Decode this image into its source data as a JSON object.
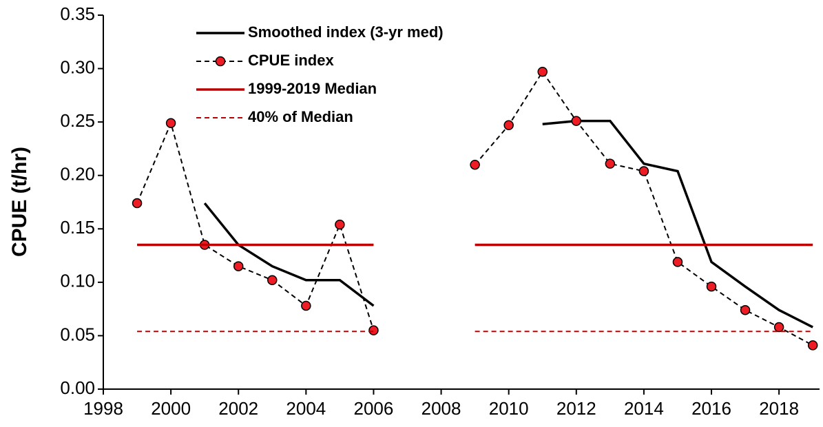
{
  "chart_data": {
    "type": "line",
    "y_label": "CPUE  (t/hr)",
    "x": [
      1999,
      2000,
      2001,
      2002,
      2003,
      2004,
      2005,
      2006,
      2007,
      2008,
      2009,
      2010,
      2011,
      2012,
      2013,
      2014,
      2015,
      2016,
      2017,
      2018,
      2019
    ],
    "series": [
      {
        "name": "Smoothed index (3-yr med)",
        "color": "#000000",
        "dash": false,
        "marker": false,
        "values": [
          null,
          null,
          0.174,
          0.135,
          0.115,
          0.102,
          0.102,
          0.078,
          null,
          null,
          null,
          null,
          0.248,
          0.251,
          0.251,
          0.211,
          0.204,
          0.119,
          0.096,
          0.074,
          0.058
        ]
      },
      {
        "name": "CPUE index",
        "color": "#000000",
        "dash": true,
        "marker": true,
        "marker_color": "#ee1c24",
        "values": [
          0.174,
          0.249,
          0.135,
          0.115,
          0.102,
          0.078,
          0.154,
          0.055,
          null,
          null,
          0.21,
          0.247,
          0.297,
          0.251,
          0.211,
          0.204,
          0.119,
          0.096,
          0.074,
          0.058,
          0.041
        ]
      },
      {
        "name": "1999-2019 Median",
        "color": "#c00000",
        "dash": false,
        "marker": false,
        "values": [
          0.135,
          0.135,
          0.135,
          0.135,
          0.135,
          0.135,
          0.135,
          0.135,
          null,
          null,
          0.135,
          0.135,
          0.135,
          0.135,
          0.135,
          0.135,
          0.135,
          0.135,
          0.135,
          0.135,
          0.135
        ]
      },
      {
        "name": "40% of Median",
        "color": "#c00000",
        "dash": true,
        "marker": false,
        "values": [
          0.054,
          0.054,
          0.054,
          0.054,
          0.054,
          0.054,
          0.054,
          0.054,
          null,
          null,
          0.054,
          0.054,
          0.054,
          0.054,
          0.054,
          0.054,
          0.054,
          0.054,
          0.054,
          0.054,
          0.054
        ]
      }
    ],
    "xlim": [
      1998,
      2019.2
    ],
    "xticks": [
      1998,
      2000,
      2002,
      2004,
      2006,
      2008,
      2010,
      2012,
      2014,
      2016,
      2018
    ],
    "ylim": [
      0,
      0.35
    ],
    "yticks": [
      {
        "value": 0,
        "label": "0.00"
      },
      {
        "value": 0.05,
        "label": "0.05"
      },
      {
        "value": 0.1,
        "label": "0.10"
      },
      {
        "value": 0.15,
        "label": "0.15"
      },
      {
        "value": 0.2,
        "label": "0.20"
      },
      {
        "value": 0.25,
        "label": "0.25"
      },
      {
        "value": 0.3,
        "label": "0.30"
      },
      {
        "value": 0.35,
        "label": "0.35"
      }
    ],
    "legend": "top-left"
  }
}
